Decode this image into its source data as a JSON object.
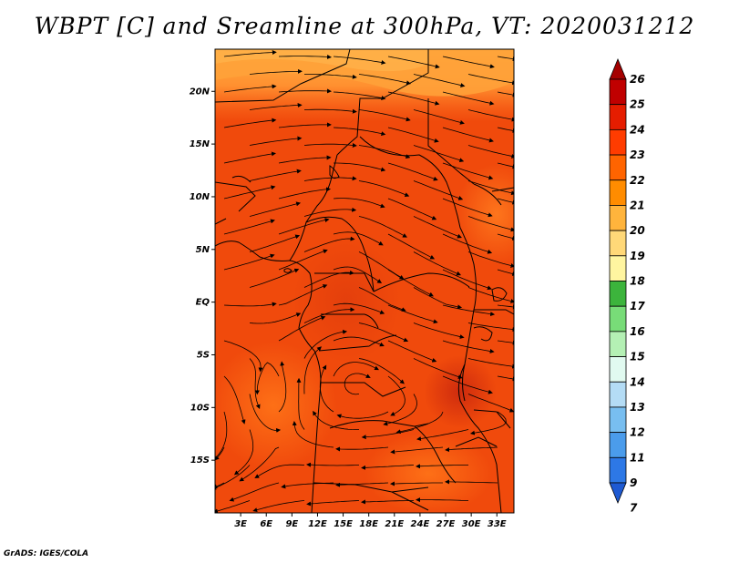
{
  "title": "WBPT [C] and Sreamline at 300hPa, VT: 2020031212",
  "credit": "GrADS: IGES/COLA",
  "map": {
    "lat_range": [
      -20,
      24
    ],
    "lon_range": [
      0,
      35
    ],
    "lat_ticks": [
      {
        "value": 20,
        "label": "20N"
      },
      {
        "value": 15,
        "label": "15N"
      },
      {
        "value": 10,
        "label": "10N"
      },
      {
        "value": 5,
        "label": "5N"
      },
      {
        "value": 0,
        "label": "EQ"
      },
      {
        "value": -5,
        "label": "5S"
      },
      {
        "value": -10,
        "label": "10S"
      },
      {
        "value": -15,
        "label": "15S"
      }
    ],
    "lon_ticks": [
      {
        "value": 3,
        "label": "3E"
      },
      {
        "value": 6,
        "label": "6E"
      },
      {
        "value": 9,
        "label": "9E"
      },
      {
        "value": 12,
        "label": "12E"
      },
      {
        "value": 15,
        "label": "15E"
      },
      {
        "value": 18,
        "label": "18E"
      },
      {
        "value": 21,
        "label": "21E"
      },
      {
        "value": 24,
        "label": "24E"
      },
      {
        "value": 27,
        "label": "27E"
      },
      {
        "value": 30,
        "label": "30E"
      },
      {
        "value": 33,
        "label": "33E"
      }
    ]
  },
  "colorbar": {
    "labels": [
      "26",
      "25",
      "24",
      "23",
      "22",
      "21",
      "20",
      "19",
      "18",
      "17",
      "16",
      "15",
      "14",
      "13",
      "12",
      "11",
      "9",
      "7"
    ],
    "colors": [
      "#a50000",
      "#c00000",
      "#e51d00",
      "#ff3c00",
      "#ff6400",
      "#ff8c00",
      "#ffb43c",
      "#ffd878",
      "#fff5a0",
      "#3cb43c",
      "#78dc78",
      "#b4f0b4",
      "#e1faf0",
      "#b4dcf5",
      "#78bef0",
      "#4b9ceb",
      "#2d78e6",
      "#1e5ad2"
    ]
  },
  "colors": {
    "field_main": "#f04a0c",
    "field_dark": "#d63210",
    "field_light": "#ff7a1e",
    "field_pale": "#ffa640"
  }
}
